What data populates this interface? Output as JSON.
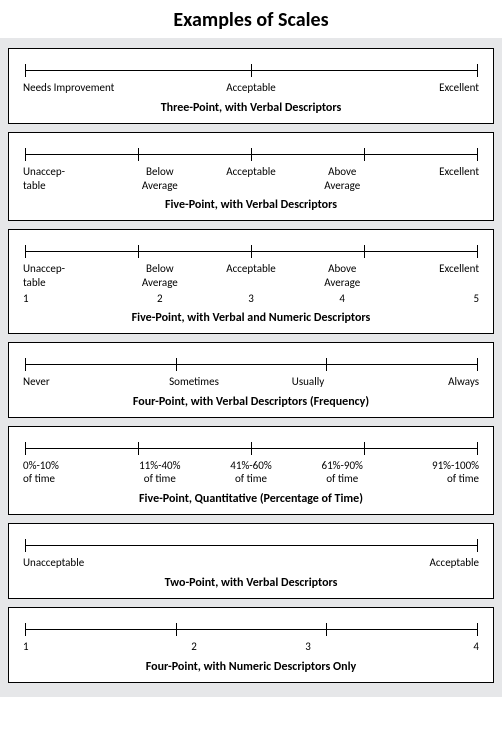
{
  "title": "Examples of Scales",
  "background_color": "#e6e7e9",
  "panel_border_color": "#000000",
  "line_color": "#000000",
  "text_color": "#000000",
  "font_family": "Gill Sans, Gill Sans MT, Calibri, sans-serif",
  "title_fontsize_pt": 15,
  "label_fontsize_pt": 8,
  "caption_fontsize_pt": 9,
  "scales": {
    "three_point": {
      "type": "scale",
      "ticks": 3,
      "labels": [
        "Needs Improvement",
        "Acceptable",
        "Excellent"
      ],
      "caption": "Three-Point, with Verbal Descriptors"
    },
    "five_point_verbal": {
      "type": "scale",
      "ticks": 5,
      "labels": [
        "Unaccep-\ntable",
        "Below\nAverage",
        "Acceptable",
        "Above\nAverage",
        "Excellent"
      ],
      "caption": "Five-Point, with Verbal Descriptors"
    },
    "five_point_verbal_numeric": {
      "type": "scale",
      "ticks": 5,
      "labels": [
        "Unaccep-\ntable",
        "Below\nAverage",
        "Acceptable",
        "Above\nAverage",
        "Excellent"
      ],
      "numbers": [
        "1",
        "2",
        "3",
        "4",
        "5"
      ],
      "caption": "Five-Point, with Verbal and Numeric Descriptors"
    },
    "four_point_frequency": {
      "type": "scale",
      "ticks": 4,
      "labels": [
        "Never",
        "Sometimes",
        "Usually",
        "Always"
      ],
      "caption": "Four-Point, with Verbal Descriptors (Frequency)"
    },
    "five_point_percentage": {
      "type": "scale",
      "ticks": 5,
      "labels": [
        "0%-10%\nof time",
        "11%-40%\nof time",
        "41%-60%\nof time",
        "61%-90%\nof time",
        "91%-100%\nof time"
      ],
      "caption": "Five-Point, Quantitative (Percentage of Time)"
    },
    "two_point": {
      "type": "scale",
      "ticks": 2,
      "labels": [
        "Unacceptable",
        "Acceptable"
      ],
      "caption": "Two-Point, with Verbal Descriptors"
    },
    "four_point_numeric": {
      "type": "scale",
      "ticks": 4,
      "labels": [
        "1",
        "2",
        "3",
        "4"
      ],
      "caption": "Four-Point, with Numeric Descriptors Only"
    }
  }
}
